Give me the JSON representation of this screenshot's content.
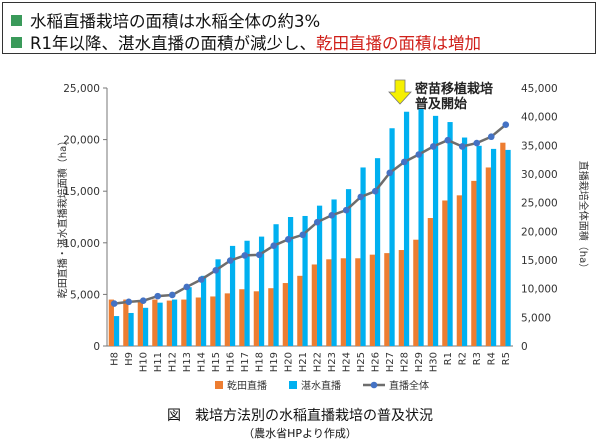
{
  "header": {
    "line1": "水稲直播栽培の面積は水稲全体の約3%",
    "line2_prefix": "R1年以降、湛水直播の面積が減少し、",
    "line2_highlight": "乾田直播の面積は増加",
    "bullet_color": "#3a9a5a",
    "highlight_color": "#d0201a"
  },
  "annotation": {
    "line1": "密苗移植栽培",
    "line2": "普及開始",
    "arrow_color": "#f5f000"
  },
  "caption": {
    "title": "図　栽培方法別の水稲直播栽培の普及状況",
    "source": "（農水省HPより作成）"
  },
  "chart_data": {
    "type": "bar",
    "categories": [
      "H8",
      "H9",
      "H10",
      "H11",
      "H12",
      "H13",
      "H14",
      "H15",
      "H16",
      "H17",
      "H18",
      "H19",
      "H20",
      "H21",
      "H22",
      "H23",
      "H24",
      "H25",
      "H26",
      "H27",
      "H28",
      "H29",
      "H30",
      "R1",
      "R2",
      "R3",
      "R4",
      "R5"
    ],
    "series": [
      {
        "name": "乾田直播",
        "type": "bar",
        "axis": "left",
        "color": "#ed7d31",
        "values": [
          4500,
          4500,
          4300,
          4500,
          4400,
          4500,
          4700,
          4800,
          5100,
          5500,
          5300,
          5600,
          6100,
          6800,
          7900,
          8400,
          8500,
          8500,
          8850,
          9000,
          9300,
          10300,
          12400,
          14100,
          14600,
          16000,
          17300,
          19700
        ]
      },
      {
        "name": "湛水直播",
        "type": "bar",
        "axis": "left",
        "color": "#00b0f0",
        "values": [
          2900,
          3200,
          3700,
          4200,
          4500,
          5700,
          6800,
          8400,
          9700,
          10200,
          10600,
          11800,
          12500,
          12600,
          13600,
          14200,
          15200,
          17300,
          18200,
          21100,
          22700,
          23000,
          22300,
          21700,
          20200,
          19400,
          19100,
          19000
        ]
      },
      {
        "name": "直播全体",
        "type": "line",
        "axis": "right",
        "color": "#6d6d6d",
        "marker_color": "#4472c4",
        "values": [
          7400,
          7700,
          7900,
          8700,
          8900,
          10300,
          11600,
          13200,
          14900,
          15800,
          15900,
          17500,
          18600,
          19400,
          21600,
          22800,
          23700,
          26000,
          27000,
          30200,
          32100,
          33400,
          34800,
          35900,
          34800,
          35400,
          36500,
          38600
        ]
      }
    ],
    "ylabel": "乾田直播・湛水直播栽培面積（ha）",
    "ylabel_right": "直播栽培全体面積（ha）",
    "ylim": [
      0,
      25000
    ],
    "ylim_right": [
      0,
      45000
    ],
    "yticks": [
      "0",
      "5,000",
      "10,000",
      "15,000",
      "20,000",
      "25,000"
    ],
    "yticks_right": [
      "0",
      "5,000",
      "10,000",
      "15,000",
      "20,000",
      "25,000",
      "30,000",
      "35,000",
      "40,000",
      "45,000"
    ],
    "grid": false,
    "legend": "bottom"
  }
}
